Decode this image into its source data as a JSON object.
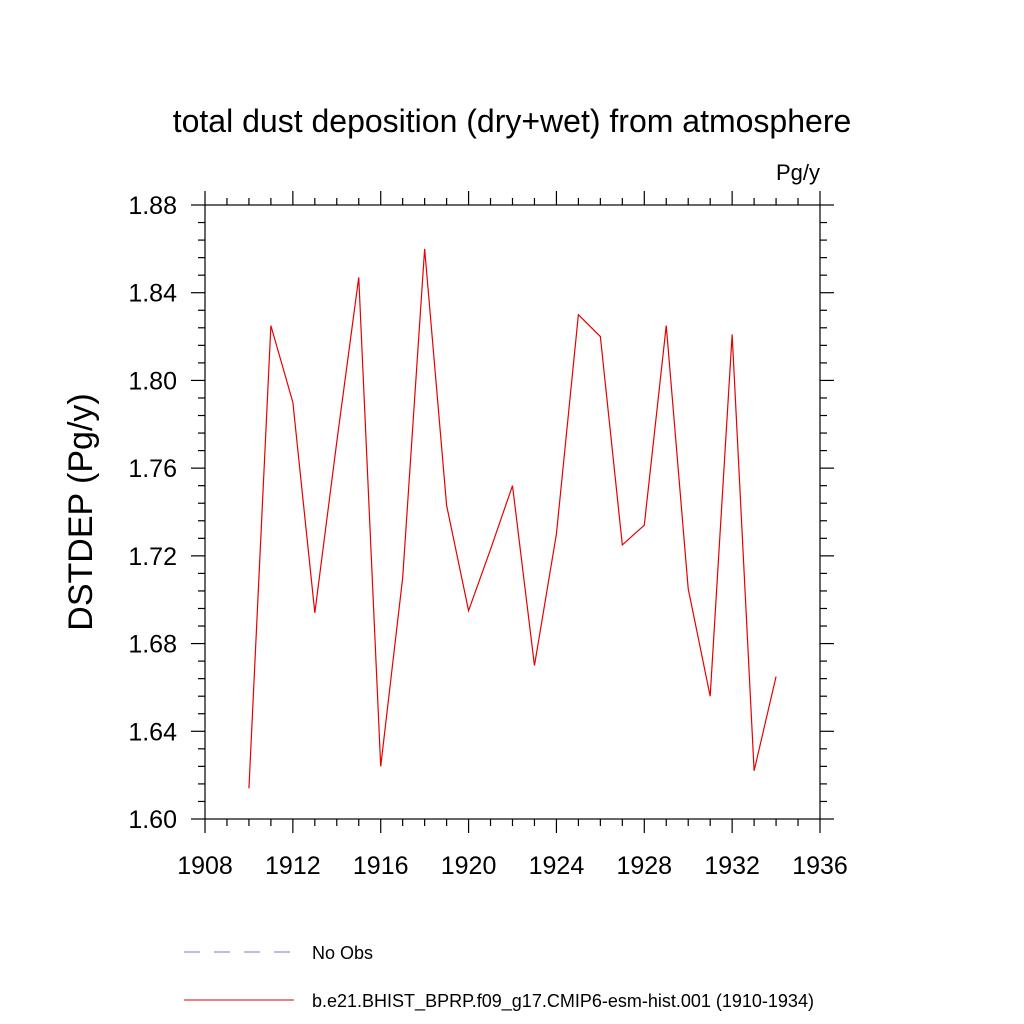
{
  "chart_data": {
    "type": "line",
    "title": "total dust deposition (dry+wet) from atmosphere",
    "units_label": "Pg/y",
    "xlabel": "",
    "ylabel": "DSTDEP  (Pg/y)",
    "xlim": [
      1908,
      1936
    ],
    "ylim": [
      1.6,
      1.88
    ],
    "x_ticks": [
      1908,
      1912,
      1916,
      1920,
      1924,
      1928,
      1932,
      1936
    ],
    "y_ticks": [
      "1.60",
      "1.64",
      "1.68",
      "1.72",
      "1.76",
      "1.80",
      "1.84",
      "1.88"
    ],
    "grid": false,
    "legend_position": "bottom",
    "series": [
      {
        "name": "No Obs",
        "color": "#7b7bbd",
        "dash": "dashed",
        "x": [],
        "values": []
      },
      {
        "name": "b.e21.BHIST_BPRP.f09_g17.CMIP6-esm-hist.001 (1910-1934)",
        "color": "#e60000",
        "dash": "solid",
        "x": [
          1910,
          1911,
          1912,
          1913,
          1914,
          1915,
          1916,
          1917,
          1918,
          1919,
          1920,
          1921,
          1922,
          1923,
          1924,
          1925,
          1926,
          1927,
          1928,
          1929,
          1930,
          1931,
          1932,
          1933,
          1934
        ],
        "values": [
          1.614,
          1.825,
          1.79,
          1.694,
          1.772,
          1.847,
          1.624,
          1.71,
          1.86,
          1.743,
          1.695,
          1.723,
          1.752,
          1.67,
          1.73,
          1.83,
          1.82,
          1.725,
          1.734,
          1.825,
          1.705,
          1.656,
          1.821,
          1.622,
          1.665
        ]
      }
    ]
  }
}
